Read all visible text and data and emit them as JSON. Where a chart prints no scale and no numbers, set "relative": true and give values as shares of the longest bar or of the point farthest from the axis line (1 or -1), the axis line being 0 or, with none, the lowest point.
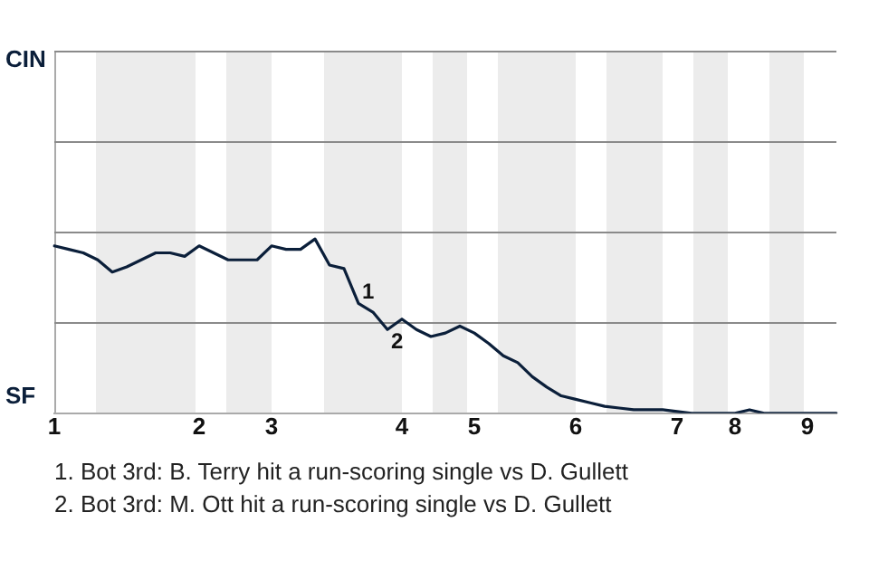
{
  "chart_data": {
    "type": "line",
    "relative": true,
    "categories": [
      "1",
      null,
      null,
      null,
      null,
      null,
      null,
      null,
      null,
      null,
      "2",
      null,
      null,
      null,
      null,
      "3",
      null,
      null,
      null,
      null,
      null,
      null,
      null,
      null,
      "4",
      null,
      null,
      null,
      null,
      "5",
      null,
      null,
      null,
      null,
      null,
      null,
      "6",
      null,
      null,
      null,
      null,
      null,
      null,
      "7",
      null,
      null,
      null,
      "8",
      null,
      null,
      null,
      null,
      "9",
      null,
      null
    ],
    "series": [
      {
        "color": "#0b1f3a",
        "values": [
          0.96,
          0.94,
          0.92,
          0.88,
          0.81,
          0.84,
          0.88,
          0.92,
          0.92,
          0.9,
          0.96,
          0.92,
          0.88,
          0.88,
          0.88,
          0.96,
          0.94,
          0.94,
          1,
          0.85,
          0.83,
          0.63,
          0.58,
          0.48,
          0.54,
          0.48,
          0.44,
          0.46,
          0.5,
          0.46,
          0.4,
          0.33,
          0.29,
          0.21,
          0.15,
          0.1,
          0.08,
          0.06,
          0.04,
          0.03,
          0.02,
          0.02,
          0.02,
          0.01,
          0,
          0,
          0,
          0,
          0.02,
          0,
          0,
          0,
          0,
          0,
          0
        ]
      }
    ],
    "annotations": [
      "CIN",
      "SF",
      {
        "text": "1",
        "y": 0.63
      },
      {
        "text": "2",
        "y": 0.48
      },
      "1. Bot 3rd: B. Terry hit a run-scoring single vs D. Gullett",
      "2. Bot 3rd: M. Ott hit a run-scoring single vs D. Gullett"
    ],
    "ref_lines": [
      {
        "axis": "y",
        "value": 0.52,
        "color": "#8a8a8a"
      },
      {
        "axis": "y",
        "value": 1.04,
        "color": "#8a8a8a"
      },
      {
        "axis": "y",
        "value": 1.56,
        "color": "#8a8a8a"
      },
      {
        "axis": "y",
        "value": 2.08,
        "color": "#8a8a8a"
      }
    ],
    "legend": false,
    "marker": "none",
    "line_style": "solid"
  }
}
